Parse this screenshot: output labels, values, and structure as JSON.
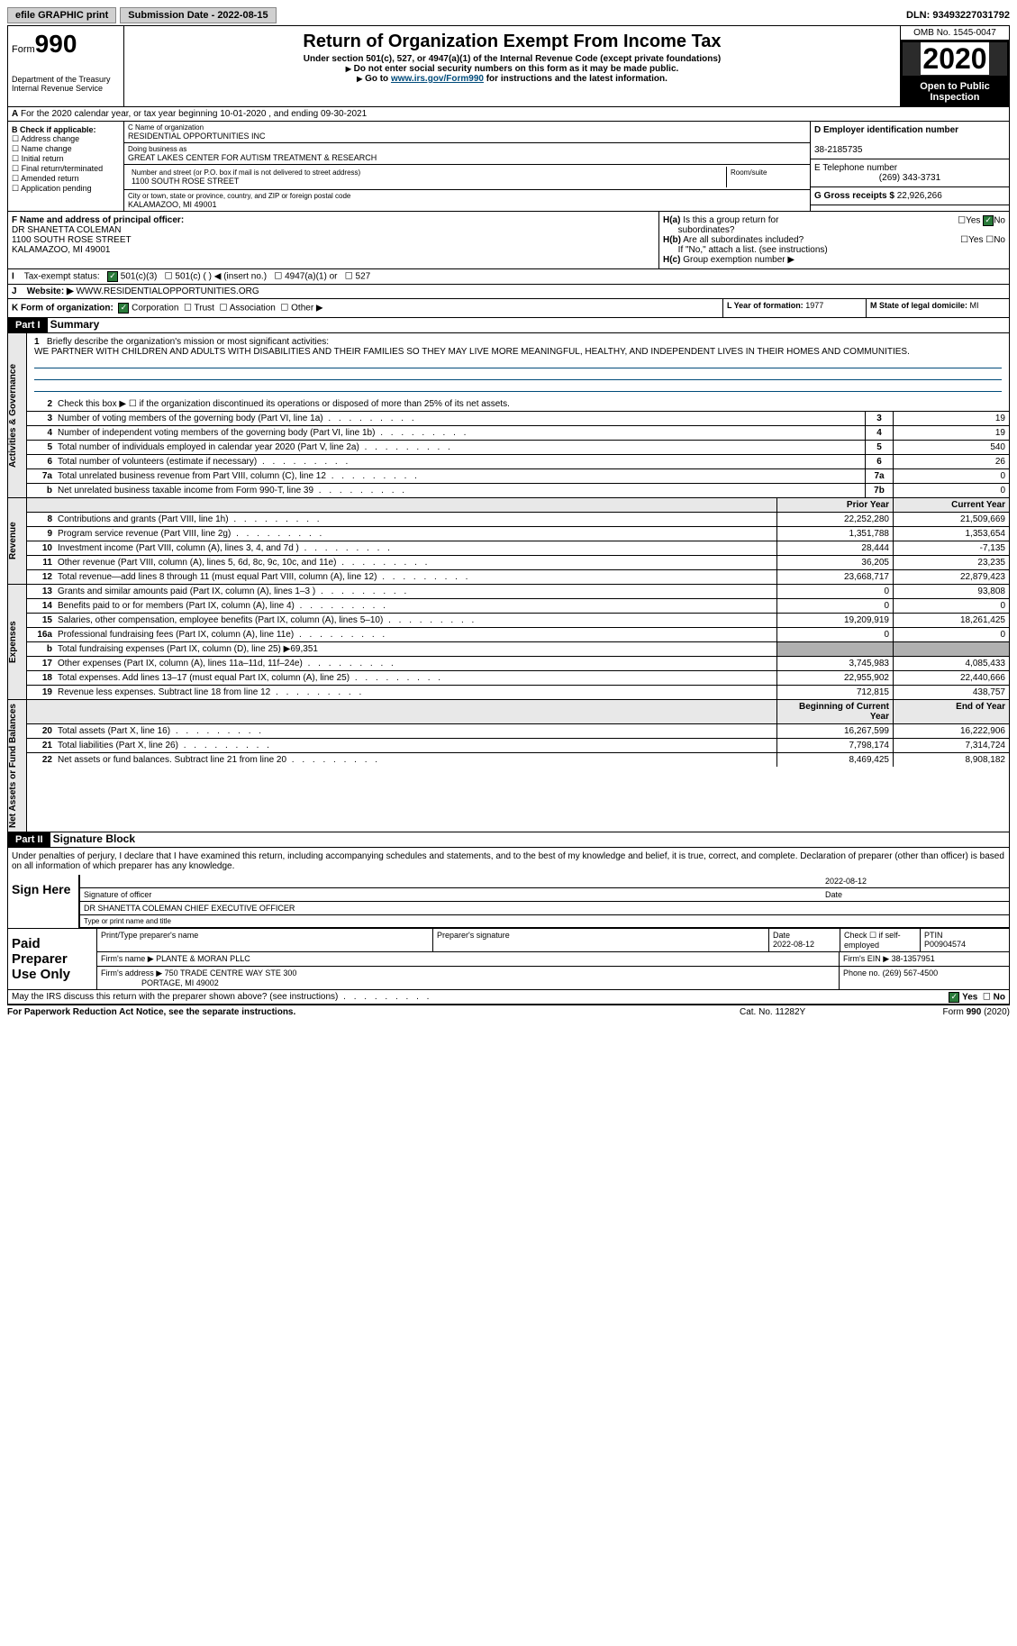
{
  "topbar": {
    "efile": "efile GRAPHIC print",
    "submission": "Submission Date - 2022-08-15",
    "dln": "DLN: 93493227031792"
  },
  "header": {
    "form_label": "Form",
    "form_num": "990",
    "dept": "Department of the Treasury\nInternal Revenue Service",
    "title": "Return of Organization Exempt From Income Tax",
    "subtitle": "Under section 501(c), 527, or 4947(a)(1) of the Internal Revenue Code (except private foundations)",
    "note1": "Do not enter social security numbers on this form as it may be made public.",
    "note2_pre": "Go to ",
    "note2_link": "www.irs.gov/Form990",
    "note2_post": " for instructions and the latest information.",
    "omb": "OMB No. 1545-0047",
    "year": "2020",
    "inspection": "Open to Public Inspection"
  },
  "row_a": "For the 2020 calendar year, or tax year beginning 10-01-2020   , and ending 09-30-2021",
  "box_b": {
    "label": "B Check if applicable:",
    "items": [
      "Address change",
      "Name change",
      "Initial return",
      "Final return/terminated",
      "Amended return",
      "Application pending"
    ]
  },
  "box_c": {
    "name_label": "C Name of organization",
    "name": "RESIDENTIAL OPPORTUNITIES INC",
    "dba_label": "Doing business as",
    "dba": "GREAT LAKES CENTER FOR AUTISM TREATMENT & RESEARCH",
    "street_label": "Number and street (or P.O. box if mail is not delivered to street address)",
    "room_label": "Room/suite",
    "street": "1100 SOUTH ROSE STREET",
    "city_label": "City or town, state or province, country, and ZIP or foreign postal code",
    "city": "KALAMAZOO, MI  49001"
  },
  "box_d": {
    "label": "D Employer identification number",
    "ein": "38-2185735",
    "phone_label": "E Telephone number",
    "phone": "(269) 343-3731",
    "gross_label": "G Gross receipts $",
    "gross": "22,926,266"
  },
  "box_f": {
    "label": "F Name and address of principal officer:",
    "name": "DR SHANETTA COLEMAN",
    "addr1": "1100 SOUTH ROSE STREET",
    "addr2": "KALAMAZOO, MI  49001"
  },
  "box_h": {
    "ha": "Is this a group return for",
    "ha2": "subordinates?",
    "hb": "Are all subordinates included?",
    "hb2": "If \"No,\" attach a list. (see instructions)",
    "hc": "Group exemption number ▶",
    "yes": "Yes",
    "no": "No"
  },
  "row_i": {
    "label": "Tax-exempt status:",
    "opts": [
      "501(c)(3)",
      "501(c) (  ) ◀ (insert no.)",
      "4947(a)(1) or",
      "527"
    ]
  },
  "row_j": {
    "label": "Website: ▶",
    "value": "WWW.RESIDENTIALOPPORTUNITIES.ORG"
  },
  "row_k": {
    "label": "K Form of organization:",
    "opts": [
      "Corporation",
      "Trust",
      "Association",
      "Other ▶"
    ],
    "year_label": "L Year of formation:",
    "year": "1977",
    "state_label": "M State of legal domicile:",
    "state": "MI"
  },
  "part1": {
    "header": "Part I",
    "title": "Summary",
    "mission_label": "Briefly describe the organization's mission or most significant activities:",
    "mission": "WE PARTNER WITH CHILDREN AND ADULTS WITH DISABILITIES AND THEIR FAMILIES SO THEY MAY LIVE MORE MEANINGFUL, HEALTHY, AND INDEPENDENT LIVES IN THEIR HOMES AND COMMUNITIES.",
    "line2": "Check this box ▶ ☐  if the organization discontinued its operations or disposed of more than 25% of its net assets.",
    "vtabs": [
      "Activities & Governance",
      "Revenue",
      "Expenses",
      "Net Assets or Fund Balances"
    ],
    "head_prior": "Prior Year",
    "head_current": "Current Year",
    "head_begin": "Beginning of Current Year",
    "head_end": "End of Year",
    "lines_gov": [
      {
        "n": "3",
        "d": "Number of voting members of the governing body (Part VI, line 1a)",
        "b": "3",
        "v": "19"
      },
      {
        "n": "4",
        "d": "Number of independent voting members of the governing body (Part VI, line 1b)",
        "b": "4",
        "v": "19"
      },
      {
        "n": "5",
        "d": "Total number of individuals employed in calendar year 2020 (Part V, line 2a)",
        "b": "5",
        "v": "540"
      },
      {
        "n": "6",
        "d": "Total number of volunteers (estimate if necessary)",
        "b": "6",
        "v": "26"
      },
      {
        "n": "7a",
        "d": "Total unrelated business revenue from Part VIII, column (C), line 12",
        "b": "7a",
        "v": "0"
      },
      {
        "n": "b",
        "d": "Net unrelated business taxable income from Form 990-T, line 39",
        "b": "7b",
        "v": "0"
      }
    ],
    "lines_rev": [
      {
        "n": "8",
        "d": "Contributions and grants (Part VIII, line 1h)",
        "p": "22,252,280",
        "c": "21,509,669"
      },
      {
        "n": "9",
        "d": "Program service revenue (Part VIII, line 2g)",
        "p": "1,351,788",
        "c": "1,353,654"
      },
      {
        "n": "10",
        "d": "Investment income (Part VIII, column (A), lines 3, 4, and 7d )",
        "p": "28,444",
        "c": "-7,135"
      },
      {
        "n": "11",
        "d": "Other revenue (Part VIII, column (A), lines 5, 6d, 8c, 9c, 10c, and 11e)",
        "p": "36,205",
        "c": "23,235"
      },
      {
        "n": "12",
        "d": "Total revenue—add lines 8 through 11 (must equal Part VIII, column (A), line 12)",
        "p": "23,668,717",
        "c": "22,879,423"
      }
    ],
    "lines_exp": [
      {
        "n": "13",
        "d": "Grants and similar amounts paid (Part IX, column (A), lines 1–3 )",
        "p": "0",
        "c": "93,808"
      },
      {
        "n": "14",
        "d": "Benefits paid to or for members (Part IX, column (A), line 4)",
        "p": "0",
        "c": "0"
      },
      {
        "n": "15",
        "d": "Salaries, other compensation, employee benefits (Part IX, column (A), lines 5–10)",
        "p": "19,209,919",
        "c": "18,261,425"
      },
      {
        "n": "16a",
        "d": "Professional fundraising fees (Part IX, column (A), line 11e)",
        "p": "0",
        "c": "0"
      },
      {
        "n": "b",
        "d": "Total fundraising expenses (Part IX, column (D), line 25) ▶69,351",
        "gray": true
      },
      {
        "n": "17",
        "d": "Other expenses (Part IX, column (A), lines 11a–11d, 11f–24e)",
        "p": "3,745,983",
        "c": "4,085,433"
      },
      {
        "n": "18",
        "d": "Total expenses. Add lines 13–17 (must equal Part IX, column (A), line 25)",
        "p": "22,955,902",
        "c": "22,440,666"
      },
      {
        "n": "19",
        "d": "Revenue less expenses. Subtract line 18 from line 12",
        "p": "712,815",
        "c": "438,757"
      }
    ],
    "lines_net": [
      {
        "n": "20",
        "d": "Total assets (Part X, line 16)",
        "p": "16,267,599",
        "c": "16,222,906"
      },
      {
        "n": "21",
        "d": "Total liabilities (Part X, line 26)",
        "p": "7,798,174",
        "c": "7,314,724"
      },
      {
        "n": "22",
        "d": "Net assets or fund balances. Subtract line 21 from line 20",
        "p": "8,469,425",
        "c": "8,908,182"
      }
    ]
  },
  "part2": {
    "header": "Part II",
    "title": "Signature Block",
    "intro": "Under penalties of perjury, I declare that I have examined this return, including accompanying schedules and statements, and to the best of my knowledge and belief, it is true, correct, and complete. Declaration of preparer (other than officer) is based on all information of which preparer has any knowledge.",
    "sign_here": "Sign Here",
    "sig_date": "2022-08-12",
    "sig_officer": "Signature of officer",
    "date_label": "Date",
    "officer_name": "DR SHANETTA COLEMAN CHIEF EXECUTIVE OFFICER",
    "type_label": "Type or print name and title",
    "paid_label": "Paid Preparer Use Only",
    "prep_name_label": "Print/Type preparer's name",
    "prep_sig_label": "Preparer's signature",
    "prep_date_label": "Date",
    "prep_date": "2022-08-12",
    "self_emp": "Check ☐ if self-employed",
    "ptin_label": "PTIN",
    "ptin": "P00904574",
    "firm_name_label": "Firm's name    ▶",
    "firm_name": "PLANTE & MORAN PLLC",
    "firm_ein_label": "Firm's EIN ▶",
    "firm_ein": "38-1357951",
    "firm_addr_label": "Firm's address ▶",
    "firm_addr": "750 TRADE CENTRE WAY STE 300",
    "firm_city": "PORTAGE, MI  49002",
    "phone_label": "Phone no.",
    "phone": "(269) 567-4500",
    "discuss": "May the IRS discuss this return with the preparer shown above? (see instructions)"
  },
  "footer": {
    "left": "For Paperwork Reduction Act Notice, see the separate instructions.",
    "mid": "Cat. No. 11282Y",
    "right": "Form 990 (2020)"
  }
}
